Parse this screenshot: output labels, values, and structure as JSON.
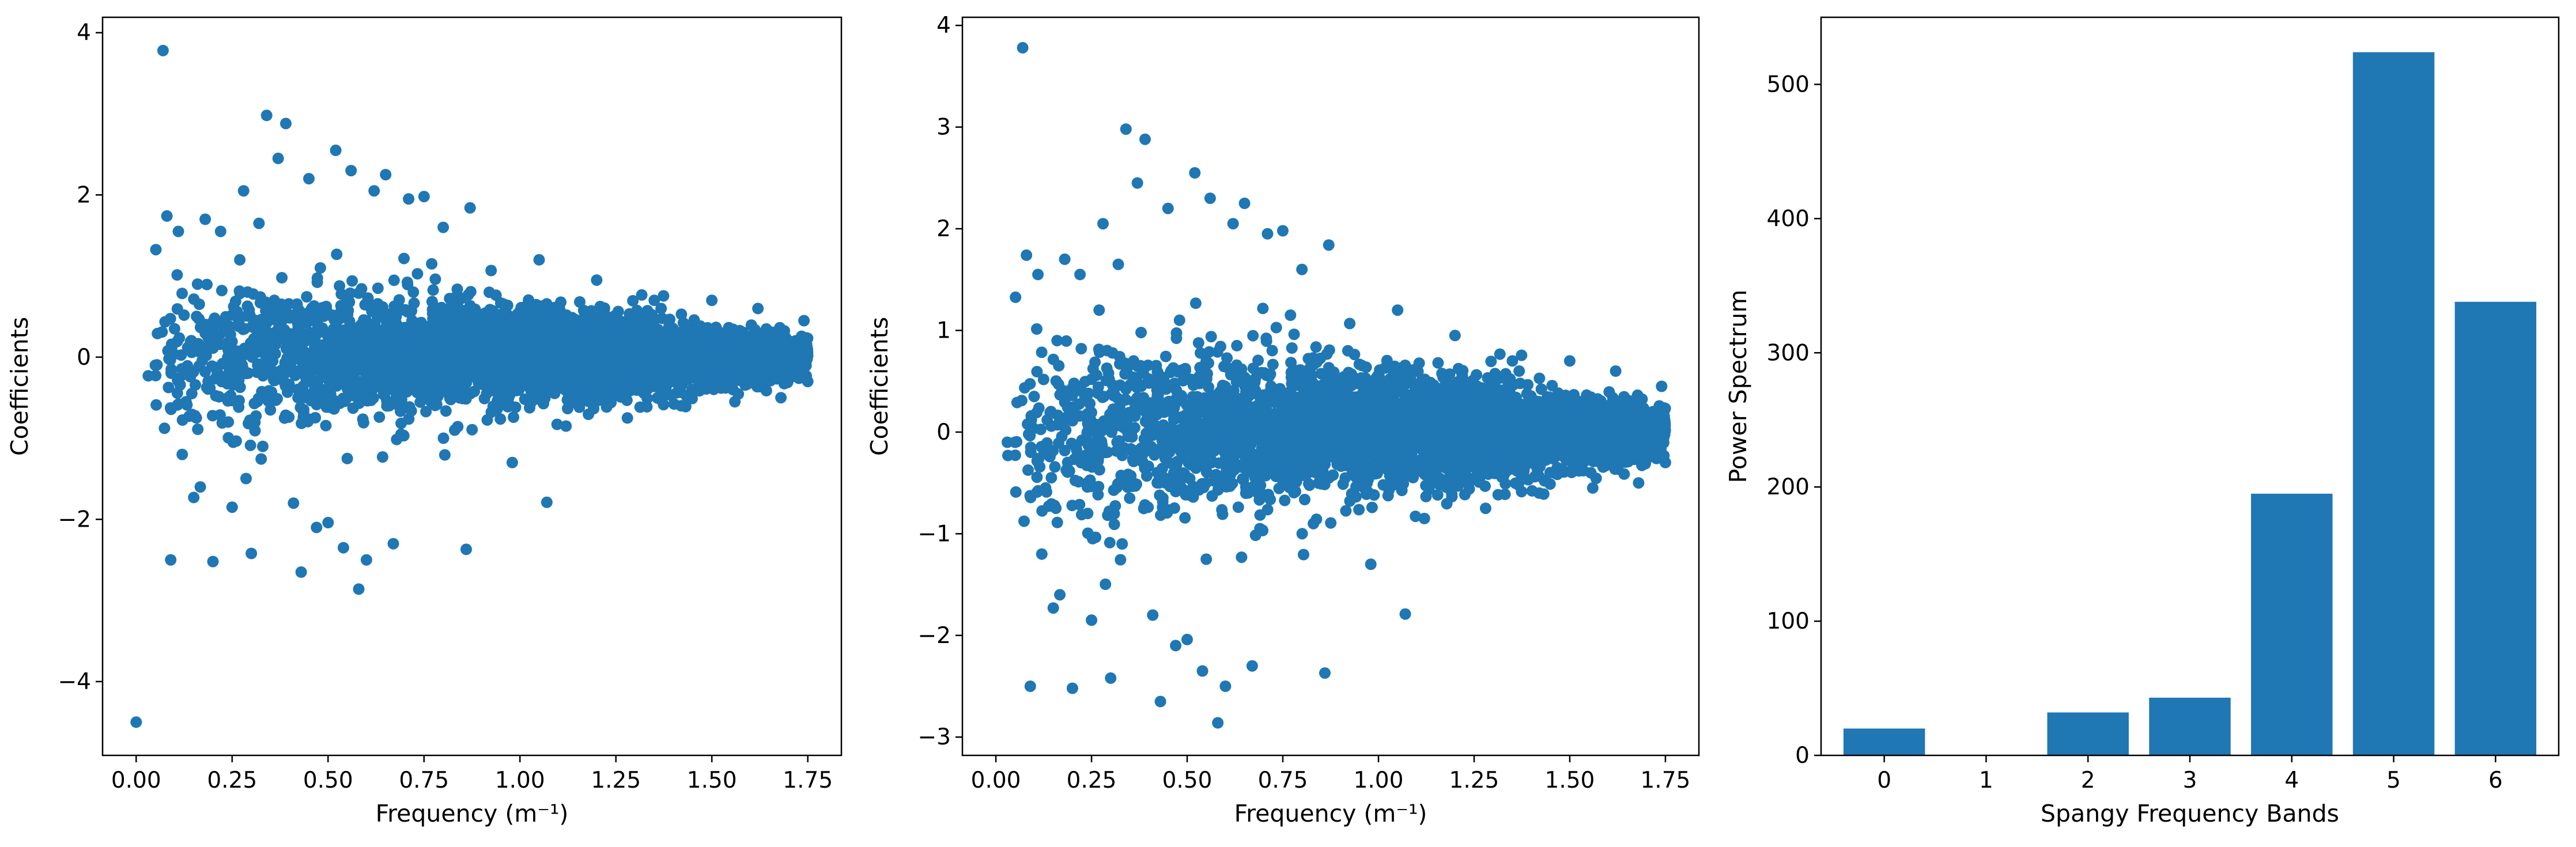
{
  "colors": {
    "series": "#1f77b4",
    "axes": "#000000",
    "background": "#ffffff"
  },
  "chart_data": [
    {
      "type": "scatter",
      "xlabel": "Frequency (m⁻¹)",
      "ylabel": "Coefficients",
      "xlim": [
        -0.0875,
        1.8375
      ],
      "ylim": [
        -4.91,
        4.19
      ],
      "xticks": [
        0.0,
        0.25,
        0.5,
        0.75,
        1.0,
        1.25,
        1.5,
        1.75
      ],
      "xtick_labels": [
        "0.00",
        "0.25",
        "0.50",
        "0.75",
        "1.00",
        "1.25",
        "1.50",
        "1.75"
      ],
      "yticks": [
        -4,
        -2,
        0,
        2,
        4
      ],
      "ytick_labels": [
        "−4",
        "−2",
        "0",
        "2",
        "4"
      ],
      "points": [
        [
          0.0,
          -4.5
        ],
        [
          0.07,
          3.78
        ],
        [
          0.08,
          1.74
        ],
        [
          0.09,
          -2.5
        ],
        [
          0.11,
          1.55
        ],
        [
          0.12,
          -1.2
        ],
        [
          0.15,
          -1.73
        ],
        [
          0.18,
          1.7
        ],
        [
          0.2,
          -2.52
        ],
        [
          0.22,
          1.55
        ],
        [
          0.25,
          -1.85
        ],
        [
          0.28,
          2.05
        ],
        [
          0.3,
          -2.42
        ],
        [
          0.32,
          1.65
        ],
        [
          0.34,
          2.98
        ],
        [
          0.37,
          2.45
        ],
        [
          0.39,
          2.88
        ],
        [
          0.41,
          -1.8
        ],
        [
          0.43,
          -2.65
        ],
        [
          0.45,
          2.2
        ],
        [
          0.47,
          -2.1
        ],
        [
          0.5,
          -2.04
        ],
        [
          0.52,
          2.55
        ],
        [
          0.54,
          -2.35
        ],
        [
          0.56,
          2.3
        ],
        [
          0.58,
          -2.86
        ],
        [
          0.6,
          -2.5
        ],
        [
          0.62,
          2.05
        ],
        [
          0.65,
          2.25
        ],
        [
          0.67,
          -2.3
        ],
        [
          0.71,
          1.95
        ],
        [
          0.75,
          1.98
        ],
        [
          0.8,
          1.6
        ],
        [
          0.86,
          -2.37
        ],
        [
          0.87,
          1.84
        ],
        [
          1.07,
          -1.79
        ],
        [
          0.05,
          -0.1
        ],
        [
          0.1,
          0.35
        ],
        [
          0.13,
          -0.55
        ],
        [
          0.16,
          0.9
        ],
        [
          0.24,
          -0.8
        ],
        [
          0.27,
          1.2
        ],
        [
          0.33,
          -1.1
        ],
        [
          0.36,
          0.7
        ],
        [
          0.44,
          -0.45
        ],
        [
          0.48,
          1.1
        ],
        [
          0.55,
          -1.25
        ],
        [
          0.63,
          0.85
        ],
        [
          0.69,
          -0.95
        ],
        [
          0.77,
          1.15
        ],
        [
          0.83,
          -0.9
        ],
        [
          0.92,
          0.8
        ],
        [
          0.98,
          -1.3
        ],
        [
          1.05,
          1.2
        ],
        [
          1.12,
          -0.85
        ],
        [
          1.2,
          0.95
        ],
        [
          1.28,
          -0.75
        ],
        [
          1.35,
          0.7
        ],
        [
          1.42,
          -0.6
        ],
        [
          1.5,
          0.7
        ],
        [
          1.56,
          -0.55
        ],
        [
          1.62,
          0.6
        ],
        [
          1.68,
          -0.5
        ],
        [
          1.74,
          0.45
        ],
        [
          1.75,
          -0.3
        ]
      ]
    },
    {
      "type": "scatter",
      "xlabel": "Frequency (m⁻¹)",
      "ylabel": "Coefficients",
      "xlim": [
        -0.0875,
        1.8375
      ],
      "ylim": [
        -3.18,
        4.08
      ],
      "xticks": [
        0.0,
        0.25,
        0.5,
        0.75,
        1.0,
        1.25,
        1.5,
        1.75
      ],
      "xtick_labels": [
        "0.00",
        "0.25",
        "0.50",
        "0.75",
        "1.00",
        "1.25",
        "1.50",
        "1.75"
      ],
      "yticks": [
        -3,
        -2,
        -1,
        0,
        1,
        2,
        3,
        4
      ],
      "ytick_labels": [
        "−3",
        "−2",
        "−1",
        "0",
        "1",
        "2",
        "3",
        "4"
      ],
      "points": [
        [
          0.03,
          -0.1
        ],
        [
          0.07,
          3.78
        ],
        [
          0.08,
          1.74
        ],
        [
          0.09,
          -2.5
        ],
        [
          0.11,
          1.55
        ],
        [
          0.12,
          -1.2
        ],
        [
          0.15,
          -1.73
        ],
        [
          0.18,
          1.7
        ],
        [
          0.2,
          -2.52
        ],
        [
          0.22,
          1.55
        ],
        [
          0.25,
          -1.85
        ],
        [
          0.28,
          2.05
        ],
        [
          0.3,
          -2.42
        ],
        [
          0.32,
          1.65
        ],
        [
          0.34,
          2.98
        ],
        [
          0.37,
          2.45
        ],
        [
          0.39,
          2.88
        ],
        [
          0.41,
          -1.8
        ],
        [
          0.43,
          -2.65
        ],
        [
          0.45,
          2.2
        ],
        [
          0.47,
          -2.1
        ],
        [
          0.5,
          -2.04
        ],
        [
          0.52,
          2.55
        ],
        [
          0.54,
          -2.35
        ],
        [
          0.56,
          2.3
        ],
        [
          0.58,
          -2.86
        ],
        [
          0.6,
          -2.5
        ],
        [
          0.62,
          2.05
        ],
        [
          0.65,
          2.25
        ],
        [
          0.67,
          -2.3
        ],
        [
          0.71,
          1.95
        ],
        [
          0.75,
          1.98
        ],
        [
          0.8,
          1.6
        ],
        [
          0.86,
          -2.37
        ],
        [
          0.87,
          1.84
        ],
        [
          1.07,
          -1.79
        ],
        [
          0.05,
          -0.1
        ],
        [
          0.1,
          0.35
        ],
        [
          0.13,
          -0.55
        ],
        [
          0.16,
          0.9
        ],
        [
          0.24,
          -0.8
        ],
        [
          0.27,
          1.2
        ],
        [
          0.33,
          -1.1
        ],
        [
          0.36,
          0.7
        ],
        [
          0.44,
          -0.45
        ],
        [
          0.48,
          1.1
        ],
        [
          0.55,
          -1.25
        ],
        [
          0.63,
          0.85
        ],
        [
          0.69,
          -0.95
        ],
        [
          0.77,
          1.15
        ],
        [
          0.83,
          -0.9
        ],
        [
          0.92,
          0.8
        ],
        [
          0.98,
          -1.3
        ],
        [
          1.05,
          1.2
        ],
        [
          1.12,
          -0.85
        ],
        [
          1.2,
          0.95
        ],
        [
          1.28,
          -0.75
        ],
        [
          1.35,
          0.7
        ],
        [
          1.42,
          -0.6
        ],
        [
          1.5,
          0.7
        ],
        [
          1.56,
          -0.55
        ],
        [
          1.62,
          0.6
        ],
        [
          1.68,
          -0.5
        ],
        [
          1.74,
          0.45
        ],
        [
          1.75,
          -0.3
        ]
      ]
    },
    {
      "type": "bar",
      "xlabel": "Spangy Frequency Bands",
      "ylabel": "Power Spectrum",
      "categories": [
        "0",
        "1",
        "2",
        "3",
        "4",
        "5",
        "6"
      ],
      "values": [
        20,
        0,
        32,
        43,
        195,
        524,
        338
      ],
      "ylim": [
        0,
        550
      ],
      "yticks": [
        0,
        100,
        200,
        300,
        400,
        500
      ],
      "ytick_labels": [
        "0",
        "100",
        "200",
        "300",
        "400",
        "500"
      ]
    }
  ]
}
